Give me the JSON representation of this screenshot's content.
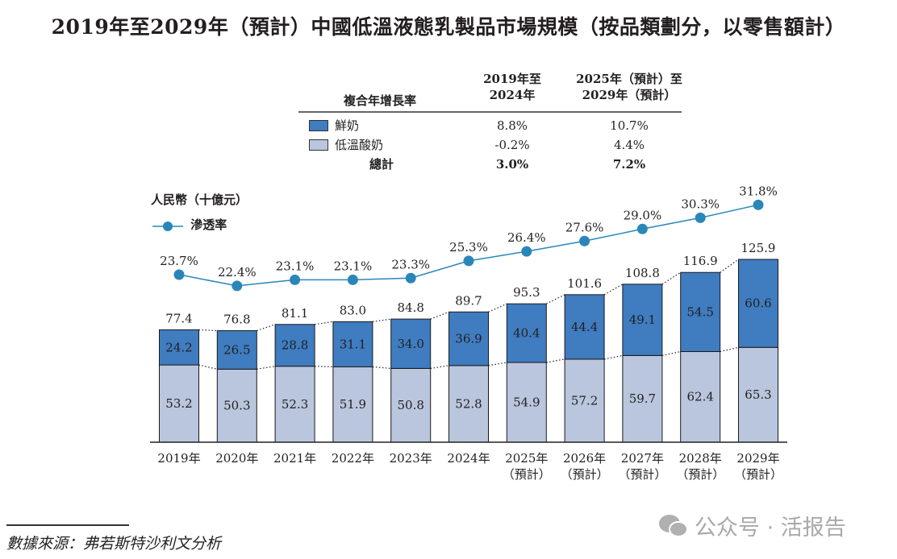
{
  "title": "2019年至2029年（預計）中國低溫液態乳製品市場規模（按品類劃分，以零售額計）",
  "cagr_table": {
    "header_label": "複合年增長率",
    "col1": [
      "2019年至",
      "2024年"
    ],
    "col2": [
      "2025年（預計）至",
      "2029年（預計）"
    ],
    "rows": [
      {
        "name": "鮮奶",
        "v1": "8.8%",
        "v2": "10.7%",
        "color": "#3f7cc0"
      },
      {
        "name": "低溫酸奶",
        "v1": "-0.2%",
        "v2": "4.4%",
        "color": "#b9c6dd"
      },
      {
        "name": "總計",
        "v1": "3.0%",
        "v2": "7.2%"
      }
    ]
  },
  "chart_data": {
    "type": "bar",
    "stacked": true,
    "ylabel": "人民幣（十億元）",
    "categories": [
      [
        "2019年"
      ],
      [
        "2020年"
      ],
      [
        "2021年"
      ],
      [
        "2022年"
      ],
      [
        "2023年"
      ],
      [
        "2024年"
      ],
      [
        "2025年",
        "（預計）"
      ],
      [
        "2026年",
        "（預計）"
      ],
      [
        "2027年",
        "（預計）"
      ],
      [
        "2028年",
        "（預計）"
      ],
      [
        "2029年",
        "（預計）"
      ]
    ],
    "series": [
      {
        "name": "低溫酸奶",
        "color": "#b9c6dd",
        "values": [
          53.2,
          50.3,
          52.3,
          51.9,
          50.8,
          52.8,
          54.9,
          57.2,
          59.7,
          62.4,
          65.3
        ]
      },
      {
        "name": "鮮奶",
        "color": "#3f7cc0",
        "values": [
          24.2,
          26.5,
          28.8,
          31.1,
          34.0,
          36.9,
          40.4,
          44.4,
          49.1,
          54.5,
          60.6
        ]
      }
    ],
    "totals": [
      77.4,
      76.8,
      81.1,
      83.0,
      84.8,
      89.7,
      95.3,
      101.6,
      108.8,
      116.9,
      125.9
    ],
    "line": {
      "name": "滲透率",
      "color": "#2a86b9",
      "values": [
        23.7,
        22.4,
        23.1,
        23.1,
        23.3,
        25.3,
        26.4,
        27.6,
        29.0,
        30.3,
        31.8
      ],
      "unit": "%"
    }
  },
  "source": "數據來源：弗若斯特沙利文分析",
  "watermark": "公众号 · 活报告"
}
